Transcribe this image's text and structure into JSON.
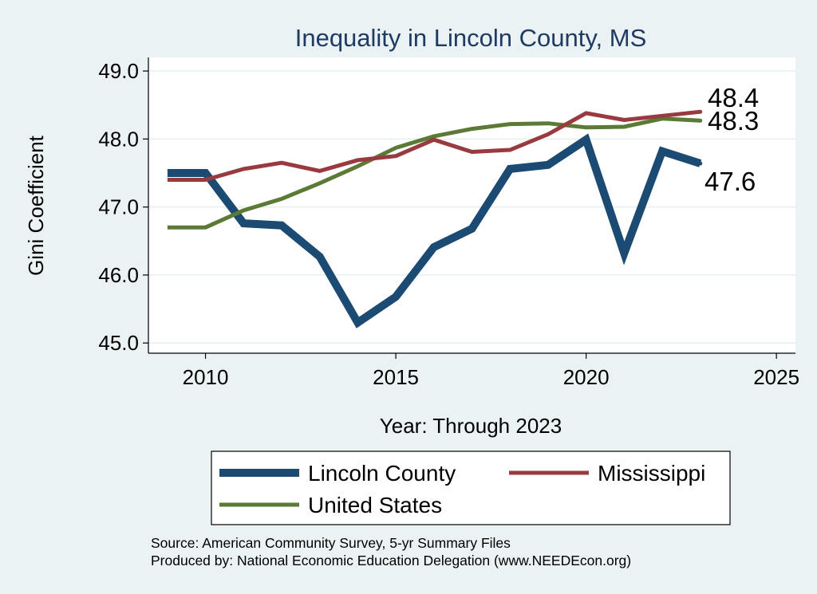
{
  "chart_data": {
    "type": "line",
    "title": "Inequality in Lincoln County, MS",
    "xlabel": "Year: Through 2023",
    "ylabel": "Gini Coefficient",
    "xlim": [
      2008.5,
      2025.5
    ],
    "ylim": [
      44.85,
      49.2
    ],
    "xticks": [
      2010,
      2015,
      2020,
      2025
    ],
    "yticks": [
      45.0,
      46.0,
      47.0,
      48.0,
      49.0
    ],
    "ytick_labels": [
      "45.0",
      "46.0",
      "47.0",
      "48.0",
      "49.0"
    ],
    "x": [
      2009,
      2010,
      2011,
      2012,
      2013,
      2014,
      2015,
      2016,
      2017,
      2018,
      2019,
      2020,
      2021,
      2022,
      2023
    ],
    "series": [
      {
        "name": "Lincoln County",
        "color": "#1b4a73",
        "values": [
          47.5,
          47.5,
          46.76,
          46.73,
          46.27,
          45.3,
          45.68,
          46.41,
          46.68,
          47.56,
          47.62,
          47.99,
          46.32,
          47.82,
          47.64
        ],
        "end_label": "47.6"
      },
      {
        "name": "Mississippi",
        "color": "#983a3f",
        "values": [
          47.4,
          47.4,
          47.56,
          47.65,
          47.53,
          47.69,
          47.75,
          47.99,
          47.81,
          47.84,
          48.07,
          48.38,
          48.28,
          48.34,
          48.4
        ],
        "end_label": "48.4"
      },
      {
        "name": "United States",
        "color": "#5a7a35",
        "values": [
          46.7,
          46.7,
          46.95,
          47.12,
          47.35,
          47.6,
          47.87,
          48.04,
          48.15,
          48.22,
          48.23,
          48.17,
          48.18,
          48.3,
          48.27
        ],
        "end_label": "48.3"
      }
    ],
    "legend": {
      "placement": "bottom",
      "entries": [
        "Lincoln County",
        "Mississippi",
        "United States"
      ]
    },
    "notes": [
      "Source: American Community Survey, 5-yr Summary Files",
      "Produced by: National Economic Education Delegation (www.NEEDEcon.org)"
    ],
    "grid": true
  }
}
